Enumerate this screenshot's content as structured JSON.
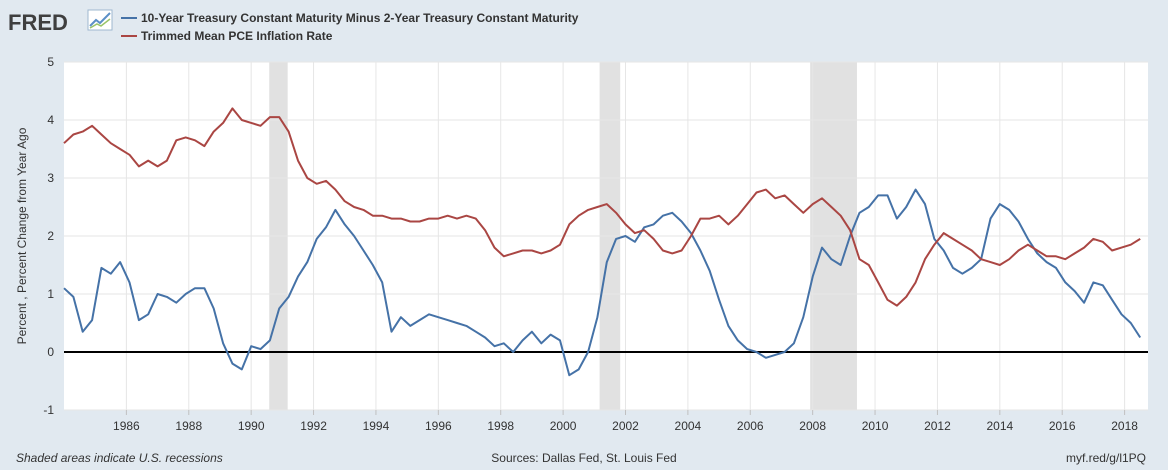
{
  "header": {
    "logo_text": "FRED",
    "legend": [
      {
        "label": "10-Year Treasury Constant Maturity Minus 2-Year Treasury Constant Maturity",
        "color": "#4572a7"
      },
      {
        "label": "Trimmed Mean PCE Inflation Rate",
        "color": "#aa4643"
      }
    ]
  },
  "footer": {
    "note": "Shaded areas indicate U.S. recessions",
    "sources": "Sources: Dallas Fed, St. Louis Fed",
    "link": "myf.red/g/l1PQ"
  },
  "colors": {
    "background": "#e1e9f0",
    "plot_background": "#ffffff",
    "recession": "#e1e1e1",
    "grid": "#e6e6e6",
    "zero_line": "#000000"
  },
  "chart_data": {
    "type": "line",
    "title": "",
    "xlabel": "",
    "ylabel": "Percent , Percent Change from Year Ago",
    "xlim": [
      1984.0,
      2018.75
    ],
    "ylim": [
      -1,
      5
    ],
    "yticks": [
      -1,
      0,
      1,
      2,
      3,
      4,
      5
    ],
    "xticks": [
      1986,
      1988,
      1990,
      1992,
      1994,
      1996,
      1998,
      2000,
      2002,
      2004,
      2006,
      2008,
      2010,
      2012,
      2014,
      2016,
      2018
    ],
    "grid": true,
    "legend_position": "top-left",
    "recessions": [
      [
        1990.58,
        1991.17
      ],
      [
        2001.17,
        2001.83
      ],
      [
        2007.92,
        2009.42
      ]
    ],
    "series": [
      {
        "name": "10-Year Treasury Constant Maturity Minus 2-Year Treasury Constant Maturity",
        "color": "#4572a7",
        "x": [
          1984.0,
          1984.3,
          1984.6,
          1984.9,
          1985.2,
          1985.5,
          1985.8,
          1986.1,
          1986.4,
          1986.7,
          1987.0,
          1987.3,
          1987.6,
          1987.9,
          1988.2,
          1988.5,
          1988.8,
          1989.1,
          1989.4,
          1989.7,
          1990.0,
          1990.3,
          1990.6,
          1990.9,
          1991.2,
          1991.5,
          1991.8,
          1992.1,
          1992.4,
          1992.7,
          1993.0,
          1993.3,
          1993.6,
          1993.9,
          1994.2,
          1994.5,
          1994.8,
          1995.1,
          1995.4,
          1995.7,
          1996.0,
          1996.3,
          1996.6,
          1996.9,
          1997.2,
          1997.5,
          1997.8,
          1998.1,
          1998.4,
          1998.7,
          1999.0,
          1999.3,
          1999.6,
          1999.9,
          2000.2,
          2000.5,
          2000.8,
          2001.1,
          2001.4,
          2001.7,
          2002.0,
          2002.3,
          2002.6,
          2002.9,
          2003.2,
          2003.5,
          2003.8,
          2004.1,
          2004.4,
          2004.7,
          2005.0,
          2005.3,
          2005.6,
          2005.9,
          2006.2,
          2006.5,
          2006.8,
          2007.1,
          2007.4,
          2007.7,
          2008.0,
          2008.3,
          2008.6,
          2008.9,
          2009.2,
          2009.5,
          2009.8,
          2010.1,
          2010.4,
          2010.7,
          2011.0,
          2011.3,
          2011.6,
          2011.9,
          2012.2,
          2012.5,
          2012.8,
          2013.1,
          2013.4,
          2013.7,
          2014.0,
          2014.3,
          2014.6,
          2014.9,
          2015.2,
          2015.5,
          2015.8,
          2016.1,
          2016.4,
          2016.7,
          2017.0,
          2017.3,
          2017.6,
          2017.9,
          2018.2,
          2018.5
        ],
        "y": [
          1.1,
          0.95,
          0.35,
          0.55,
          1.45,
          1.35,
          1.55,
          1.2,
          0.55,
          0.65,
          1.0,
          0.95,
          0.85,
          1.0,
          1.1,
          1.1,
          0.75,
          0.15,
          -0.2,
          -0.3,
          0.1,
          0.05,
          0.2,
          0.75,
          0.95,
          1.3,
          1.55,
          1.95,
          2.15,
          2.45,
          2.2,
          2.0,
          1.75,
          1.5,
          1.2,
          0.35,
          0.6,
          0.45,
          0.55,
          0.65,
          0.6,
          0.55,
          0.5,
          0.45,
          0.35,
          0.25,
          0.1,
          0.15,
          0.0,
          0.2,
          0.35,
          0.15,
          0.3,
          0.2,
          -0.4,
          -0.3,
          0.0,
          0.6,
          1.55,
          1.95,
          2.0,
          1.9,
          2.15,
          2.2,
          2.35,
          2.4,
          2.25,
          2.05,
          1.75,
          1.4,
          0.9,
          0.45,
          0.2,
          0.05,
          0.0,
          -0.1,
          -0.05,
          0.0,
          0.15,
          0.6,
          1.3,
          1.8,
          1.6,
          1.5,
          2.0,
          2.4,
          2.5,
          2.7,
          2.7,
          2.3,
          2.5,
          2.8,
          2.55,
          1.95,
          1.75,
          1.45,
          1.35,
          1.45,
          1.6,
          2.3,
          2.55,
          2.45,
          2.25,
          1.95,
          1.7,
          1.55,
          1.45,
          1.2,
          1.05,
          0.85,
          1.2,
          1.15,
          0.9,
          0.65,
          0.5,
          0.25
        ]
      },
      {
        "name": "Trimmed Mean PCE Inflation Rate",
        "color": "#aa4643",
        "x": [
          1984.0,
          1984.3,
          1984.6,
          1984.9,
          1985.2,
          1985.5,
          1985.8,
          1986.1,
          1986.4,
          1986.7,
          1987.0,
          1987.3,
          1987.6,
          1987.9,
          1988.2,
          1988.5,
          1988.8,
          1989.1,
          1989.4,
          1989.7,
          1990.0,
          1990.3,
          1990.6,
          1990.9,
          1991.2,
          1991.5,
          1991.8,
          1992.1,
          1992.4,
          1992.7,
          1993.0,
          1993.3,
          1993.6,
          1993.9,
          1994.2,
          1994.5,
          1994.8,
          1995.1,
          1995.4,
          1995.7,
          1996.0,
          1996.3,
          1996.6,
          1996.9,
          1997.2,
          1997.5,
          1997.8,
          1998.1,
          1998.4,
          1998.7,
          1999.0,
          1999.3,
          1999.6,
          1999.9,
          2000.2,
          2000.5,
          2000.8,
          2001.1,
          2001.4,
          2001.7,
          2002.0,
          2002.3,
          2002.6,
          2002.9,
          2003.2,
          2003.5,
          2003.8,
          2004.1,
          2004.4,
          2004.7,
          2005.0,
          2005.3,
          2005.6,
          2005.9,
          2006.2,
          2006.5,
          2006.8,
          2007.1,
          2007.4,
          2007.7,
          2008.0,
          2008.3,
          2008.6,
          2008.9,
          2009.2,
          2009.5,
          2009.8,
          2010.1,
          2010.4,
          2010.7,
          2011.0,
          2011.3,
          2011.6,
          2011.9,
          2012.2,
          2012.5,
          2012.8,
          2013.1,
          2013.4,
          2013.7,
          2014.0,
          2014.3,
          2014.6,
          2014.9,
          2015.2,
          2015.5,
          2015.8,
          2016.1,
          2016.4,
          2016.7,
          2017.0,
          2017.3,
          2017.6,
          2017.9,
          2018.2,
          2018.5
        ],
        "y": [
          3.6,
          3.75,
          3.8,
          3.9,
          3.75,
          3.6,
          3.5,
          3.4,
          3.2,
          3.3,
          3.2,
          3.3,
          3.65,
          3.7,
          3.65,
          3.55,
          3.8,
          3.95,
          4.2,
          4.0,
          3.95,
          3.9,
          4.05,
          4.05,
          3.8,
          3.3,
          3.0,
          2.9,
          2.95,
          2.8,
          2.6,
          2.5,
          2.45,
          2.35,
          2.35,
          2.3,
          2.3,
          2.25,
          2.25,
          2.3,
          2.3,
          2.35,
          2.3,
          2.35,
          2.3,
          2.1,
          1.8,
          1.65,
          1.7,
          1.75,
          1.75,
          1.7,
          1.75,
          1.85,
          2.2,
          2.35,
          2.45,
          2.5,
          2.55,
          2.4,
          2.2,
          2.05,
          2.1,
          1.95,
          1.75,
          1.7,
          1.75,
          2.0,
          2.3,
          2.3,
          2.35,
          2.2,
          2.35,
          2.55,
          2.75,
          2.8,
          2.65,
          2.7,
          2.55,
          2.4,
          2.55,
          2.65,
          2.5,
          2.35,
          2.1,
          1.6,
          1.5,
          1.2,
          0.9,
          0.8,
          0.95,
          1.2,
          1.6,
          1.85,
          2.05,
          1.95,
          1.85,
          1.75,
          1.6,
          1.55,
          1.5,
          1.6,
          1.75,
          1.85,
          1.75,
          1.65,
          1.65,
          1.6,
          1.7,
          1.8,
          1.95,
          1.9,
          1.75,
          1.8,
          1.85,
          1.95
        ]
      }
    ]
  }
}
